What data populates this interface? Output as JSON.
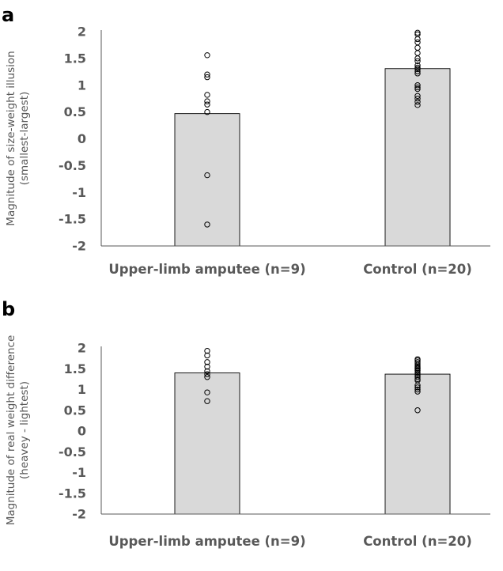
{
  "chart_data": [
    {
      "panel": "a",
      "type": "bar",
      "categories": [
        "Upper-limb amputee (n=9)",
        "Control (n=20)"
      ],
      "values": [
        0.47,
        1.31
      ],
      "points": [
        [
          1.56,
          1.2,
          1.15,
          0.82,
          0.7,
          0.64,
          0.5,
          -0.68,
          -1.6
        ],
        [
          1.98,
          1.95,
          1.86,
          1.8,
          1.7,
          1.6,
          1.5,
          1.45,
          1.37,
          1.33,
          1.3,
          1.26,
          1.22,
          1.0,
          0.96,
          0.93,
          0.8,
          0.75,
          0.69,
          0.63
        ]
      ],
      "ylabel_lines": [
        "Magnitude of size-weight illusion",
        "(smallest-largest)"
      ],
      "ylim": [
        -2,
        2
      ],
      "yticks": [
        "2",
        "1.5",
        "1",
        "0.5",
        "0",
        "-0.5",
        "-1",
        "-1.5",
        "-2"
      ]
    },
    {
      "panel": "b",
      "type": "bar",
      "categories": [
        "Upper-limb amputee (n=9)",
        "Control (n=20)"
      ],
      "values": [
        1.4,
        1.37
      ],
      "points": [
        [
          1.93,
          1.82,
          1.66,
          1.55,
          1.44,
          1.37,
          1.3,
          0.93,
          0.72
        ],
        [
          1.73,
          1.7,
          1.66,
          1.62,
          1.58,
          1.55,
          1.52,
          1.5,
          1.47,
          1.45,
          1.4,
          1.35,
          1.3,
          1.25,
          1.22,
          1.1,
          1.05,
          1.0,
          0.95,
          0.5
        ]
      ],
      "ylabel_lines": [
        "Magnitude of real weight difference",
        "(heavey - lightest)"
      ],
      "ylim": [
        -2,
        2
      ],
      "yticks": [
        "2",
        "1.5",
        "1",
        "0.5",
        "0",
        "-0.5",
        "-1",
        "-1.5",
        "-2"
      ]
    }
  ]
}
